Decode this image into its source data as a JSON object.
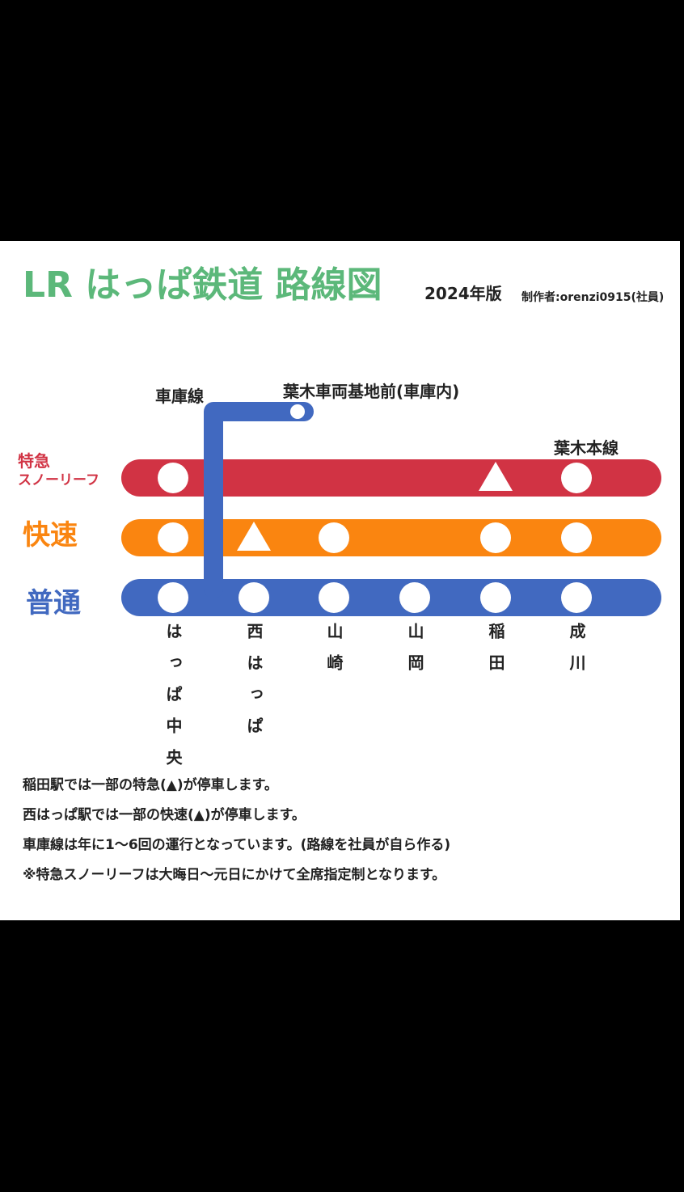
{
  "header": {
    "title": "LR はっぱ鉄道 路線図",
    "edition": "2024年版",
    "author": "制作者:orenzi0915(社員)"
  },
  "lines": {
    "limited_express": {
      "label": "特急",
      "train_name": "スノーリーフ"
    },
    "rapid": {
      "label": "快速"
    },
    "local": {
      "label": "普通"
    }
  },
  "branch": {
    "depot_line": "車庫線",
    "depot_station": "葉木車両基地前(車庫内)",
    "main_line": "葉木本線"
  },
  "stations": [
    "はっぱ中央",
    "西はっぱ",
    "山崎",
    "山岡",
    "稲田",
    "成川"
  ],
  "notes": [
    "稲田駅では一部の特急(▲)が停車します。",
    "西はっぱ駅では一部の快速(▲)が停車します。",
    "車庫線は年に1〜6回の運行となっています。(路線を社員が自ら作る)",
    "※特急スノーリーフは大晦日〜元日にかけて全席指定制となります。"
  ]
}
